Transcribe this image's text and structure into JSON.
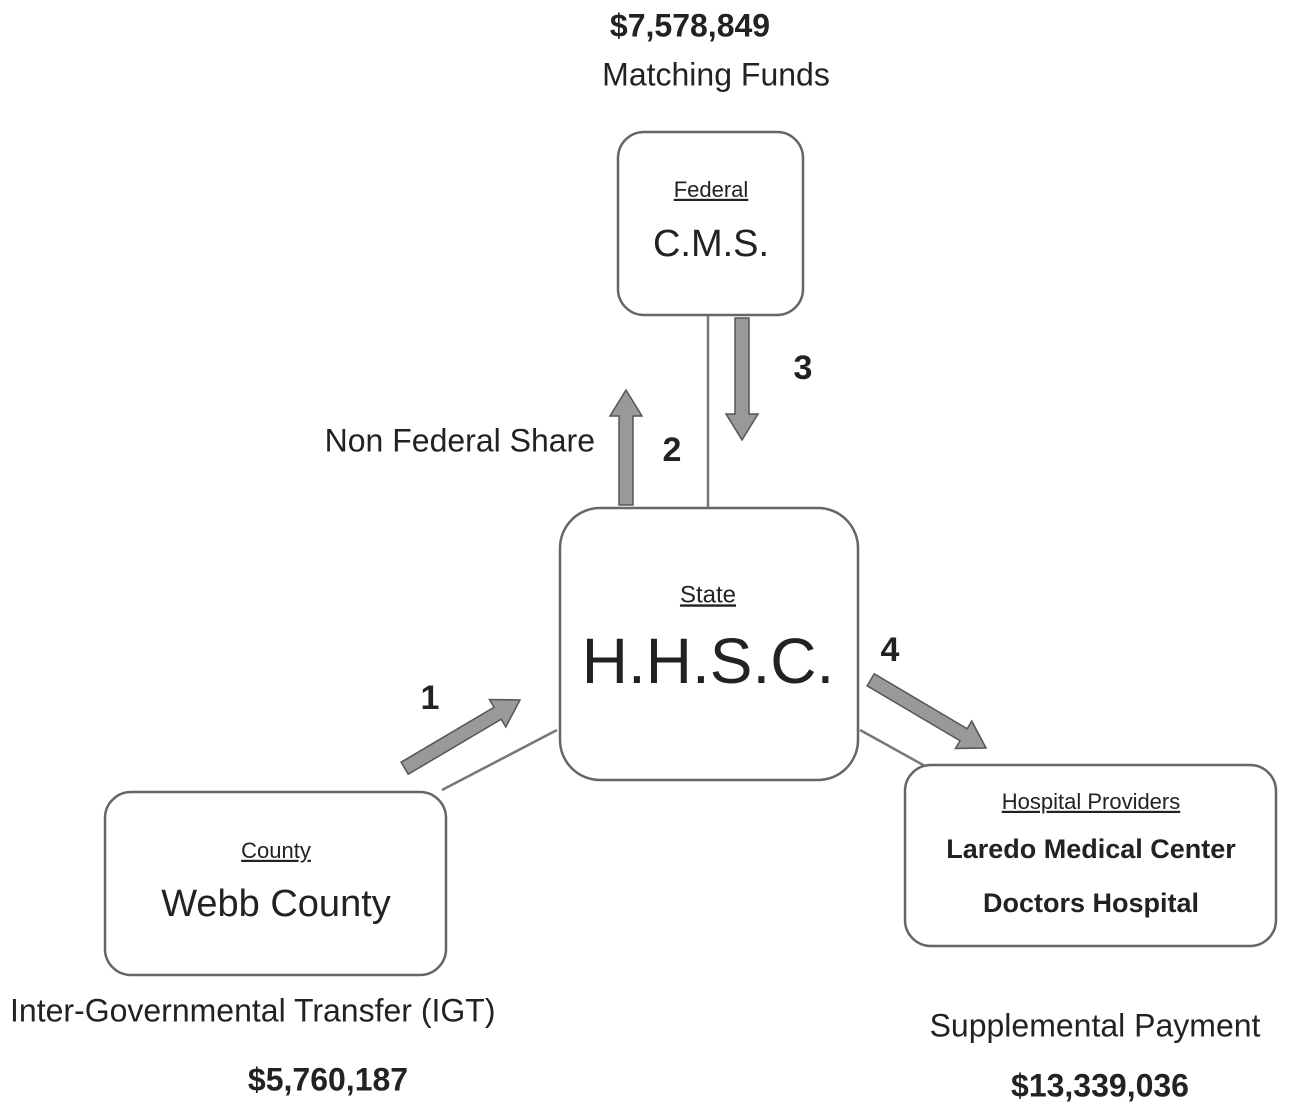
{
  "federal": {
    "amount": "$7,578,849",
    "amount_label": "Matching Funds",
    "level": "Federal",
    "name": "C.M.S."
  },
  "state": {
    "level": "State",
    "name": "H.H.S.C."
  },
  "county": {
    "level": "County",
    "name": "Webb County",
    "caption": "Inter-Governmental Transfer (IGT)",
    "amount": "$5,760,187"
  },
  "hospitals": {
    "level": "Hospital Providers",
    "names": [
      "Laredo Medical Center",
      "Doctors Hospital"
    ],
    "caption": "Supplemental Payment",
    "amount": "$13,339,036"
  },
  "flows": {
    "non_federal_share": "Non Federal Share",
    "steps": [
      "1",
      "2",
      "3",
      "4"
    ]
  }
}
